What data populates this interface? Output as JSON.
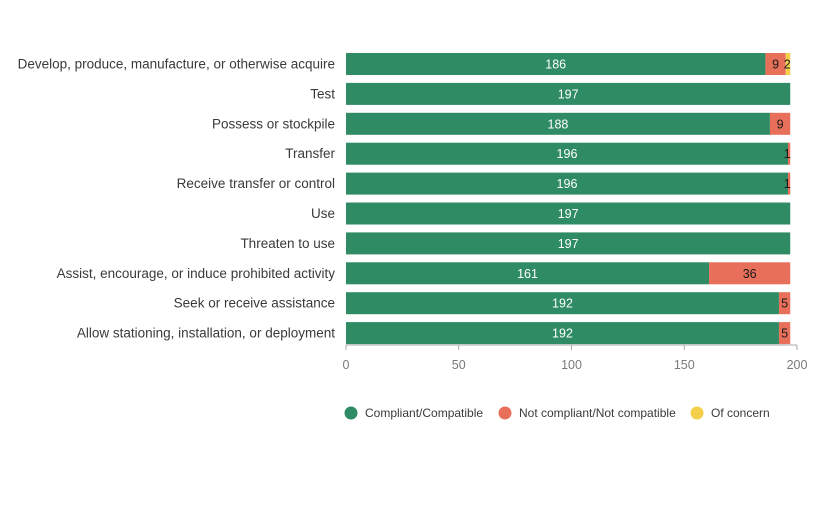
{
  "chart_data": {
    "type": "bar",
    "orientation": "horizontal",
    "stacked": true,
    "categories": [
      "Develop, produce, manufacture, or otherwise acquire",
      "Test",
      "Possess or stockpile",
      "Transfer",
      "Receive transfer or control",
      "Use",
      "Threaten to use",
      "Assist, encourage, or induce prohibited activity",
      "Seek or receive assistance",
      "Allow stationing, installation, or deployment"
    ],
    "series": [
      {
        "name": "Compliant/Compatible",
        "color": "#2e8b63",
        "values": [
          186,
          197,
          188,
          196,
          196,
          197,
          197,
          161,
          192,
          192
        ],
        "labels": [
          "186",
          "197",
          "188",
          "196",
          "196",
          "197",
          "197",
          "161",
          "192",
          "192"
        ]
      },
      {
        "name": "Not compliant/Not compatible",
        "color": "#e8705a",
        "values": [
          9,
          0,
          9,
          1,
          1,
          0,
          0,
          36,
          5,
          5
        ],
        "labels": [
          "9",
          "",
          "9",
          "1",
          "1",
          "",
          "",
          "36",
          "5",
          "5"
        ]
      },
      {
        "name": "Of concern",
        "color": "#f4cf4a",
        "values": [
          2,
          0,
          0,
          0,
          0,
          0,
          0,
          0,
          0,
          0
        ],
        "labels": [
          "2",
          "",
          "",
          "",
          "",
          "",
          "",
          "",
          "",
          ""
        ]
      }
    ],
    "xlim": [
      0,
      200
    ],
    "xticks": [
      "0",
      "50",
      "100",
      "150",
      "200"
    ],
    "title": "",
    "xlabel": "",
    "ylabel": "",
    "grid": false,
    "legend_position": "bottom"
  }
}
